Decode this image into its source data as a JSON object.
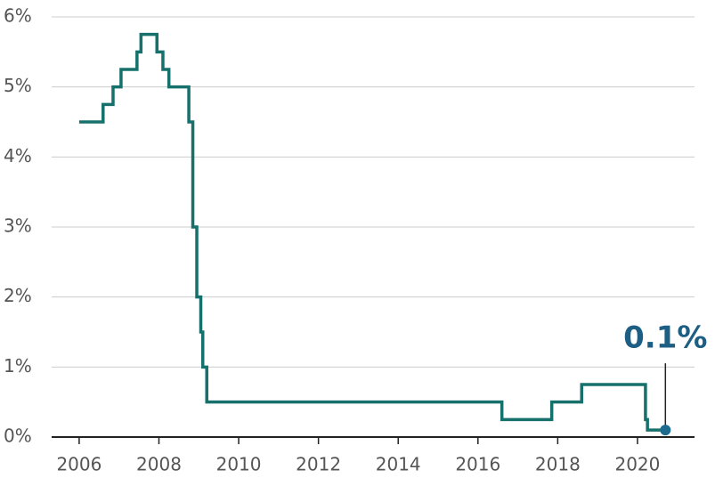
{
  "chart_data": {
    "type": "line",
    "step": true,
    "x": [
      2006.0,
      2006.6,
      2006.85,
      2007.05,
      2007.45,
      2007.55,
      2007.95,
      2008.1,
      2008.25,
      2008.75,
      2008.85,
      2008.95,
      2009.05,
      2009.1,
      2009.2,
      2016.6,
      2017.85,
      2018.6,
      2020.2,
      2020.25,
      2020.7
    ],
    "series": [
      {
        "color": "#16706b",
        "values": [
          4.5,
          4.75,
          5.0,
          5.25,
          5.5,
          5.75,
          5.5,
          5.25,
          5.0,
          4.5,
          3.0,
          2.0,
          1.5,
          1.0,
          0.5,
          0.25,
          0.5,
          0.75,
          0.25,
          0.1,
          0.1
        ],
        "value_labels": [
          null,
          null,
          null,
          null,
          null,
          null,
          null,
          null,
          null,
          null,
          null,
          null,
          null,
          null,
          null,
          null,
          null,
          null,
          null,
          null,
          "0.1%"
        ],
        "marker_color": "#1d6b8f",
        "label_color": "#1d5f84"
      }
    ],
    "xlim": [
      2005.31,
      2021.43
    ],
    "xticks": [
      2006,
      2008,
      2010,
      2012,
      2014,
      2016,
      2018,
      2020
    ],
    "ylim": [
      0,
      6
    ],
    "yticks": [
      {
        "value": 0,
        "label": "0%"
      },
      {
        "value": 1,
        "label": "1%"
      },
      {
        "value": 2,
        "label": "2%"
      },
      {
        "value": 3,
        "label": "3%"
      },
      {
        "value": 4,
        "label": "4%"
      },
      {
        "value": 5,
        "label": "5%"
      },
      {
        "value": 6,
        "label": "6%"
      }
    ],
    "grid": true
  }
}
